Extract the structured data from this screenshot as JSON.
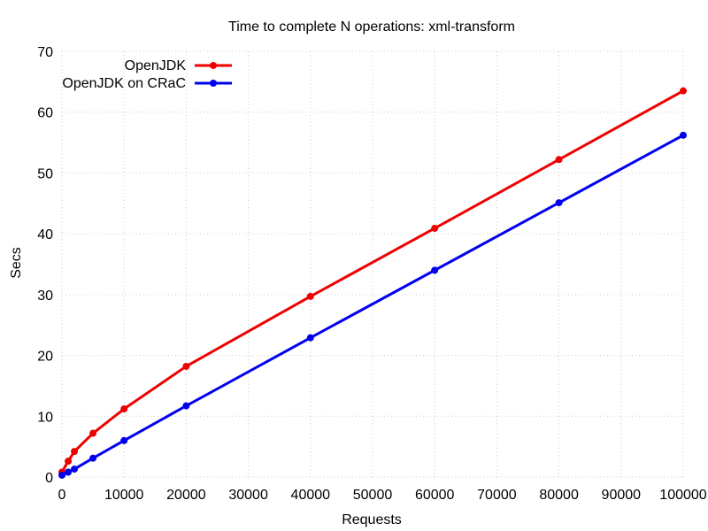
{
  "chart_data": {
    "type": "line",
    "title": "Time to complete N operations: xml-transform",
    "xlabel": "Requests",
    "ylabel": "Secs",
    "xlim": [
      0,
      100000
    ],
    "ylim": [
      0,
      70
    ],
    "x_ticks": [
      0,
      10000,
      20000,
      30000,
      40000,
      50000,
      60000,
      70000,
      80000,
      90000,
      100000
    ],
    "y_ticks": [
      0,
      10,
      20,
      30,
      40,
      50,
      60,
      70
    ],
    "grid": true,
    "legend_position": "top-left",
    "series": [
      {
        "name": "OpenJDK",
        "color": "#ee0000",
        "points": [
          [
            0,
            0.8
          ],
          [
            1000,
            2.6
          ],
          [
            2000,
            4.2
          ],
          [
            5000,
            7.2
          ],
          [
            10000,
            11.2
          ],
          [
            20000,
            18.2
          ],
          [
            40000,
            29.7
          ],
          [
            60000,
            40.9
          ],
          [
            80000,
            52.2
          ],
          [
            100000,
            63.5
          ]
        ]
      },
      {
        "name": "OpenJDK on CRaC",
        "color": "#0000ee",
        "points": [
          [
            0,
            0.3
          ],
          [
            1000,
            0.8
          ],
          [
            2000,
            1.3
          ],
          [
            5000,
            3.1
          ],
          [
            10000,
            6.0
          ],
          [
            20000,
            11.7
          ],
          [
            40000,
            22.9
          ],
          [
            60000,
            34.0
          ],
          [
            80000,
            45.1
          ],
          [
            100000,
            56.2
          ]
        ]
      }
    ]
  }
}
